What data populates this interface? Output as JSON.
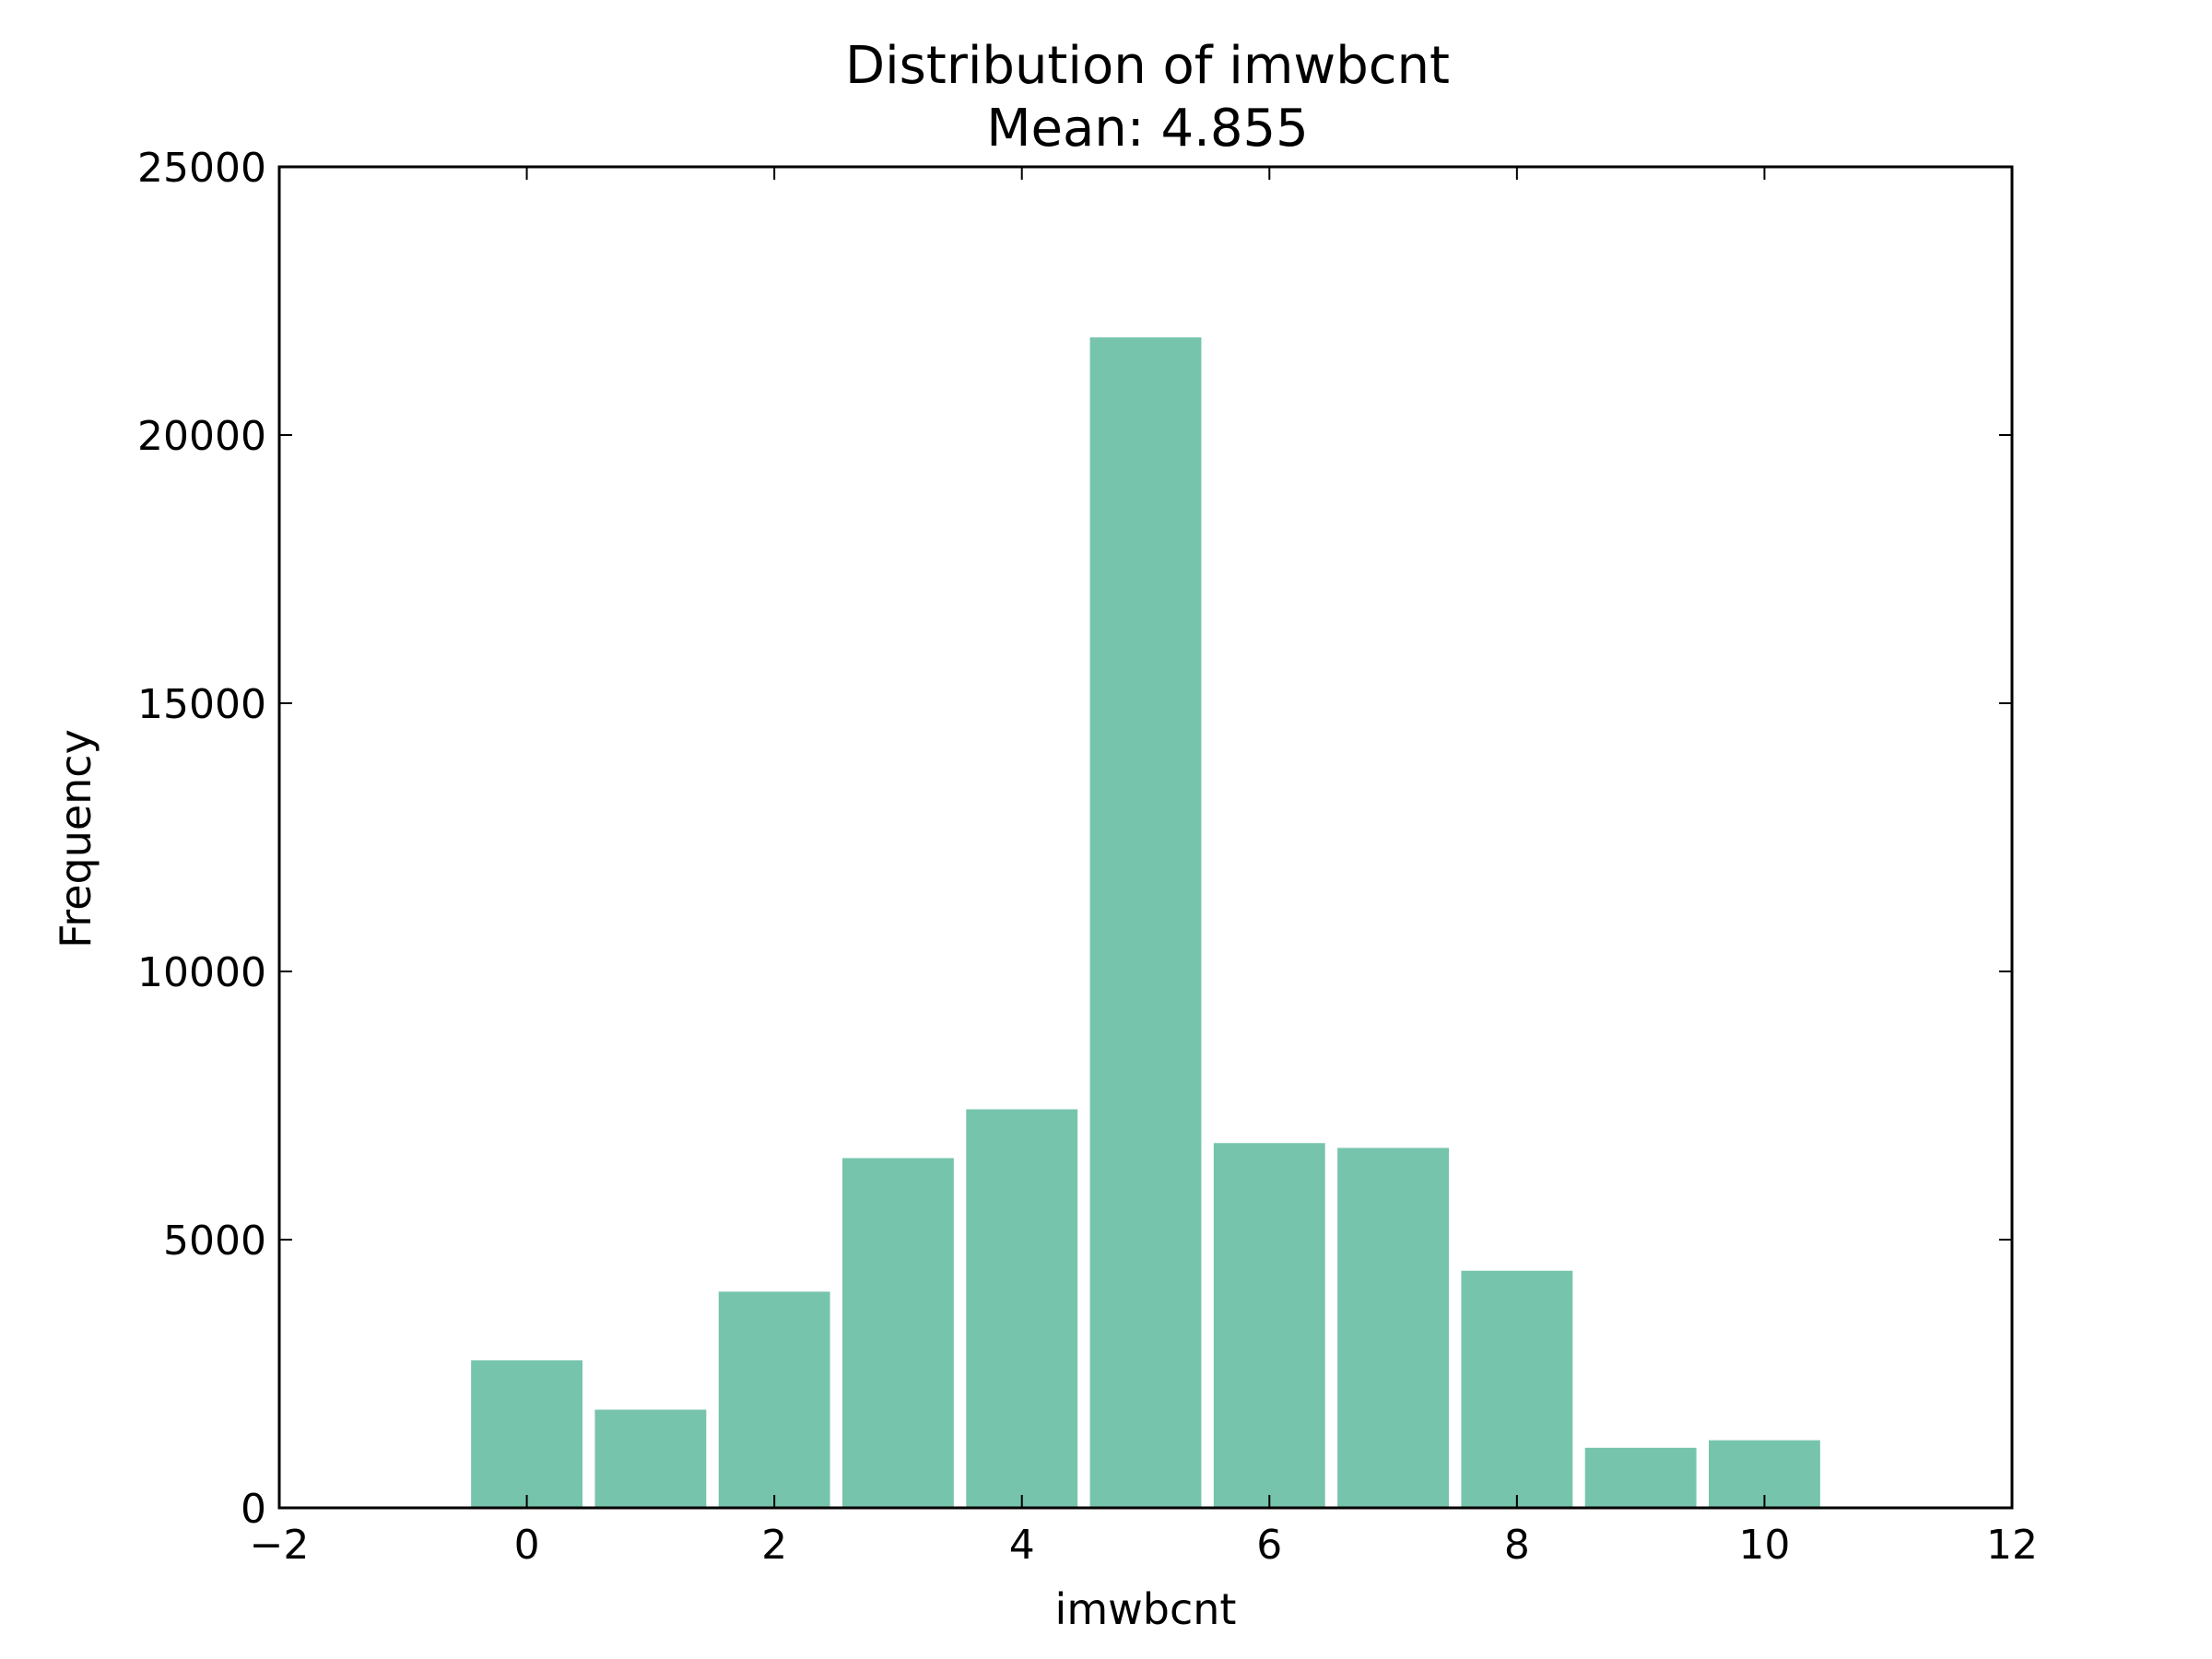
{
  "chart_data": {
    "type": "bar",
    "title": "Distribution of imwbcnt",
    "subtitle": "Mean: 4.855",
    "xlabel": "imwbcnt",
    "ylabel": "Frequency",
    "x": [
      0,
      1,
      2,
      3,
      4,
      5,
      6,
      7,
      8,
      9,
      10
    ],
    "values": [
      2750,
      1830,
      4030,
      6520,
      7430,
      21820,
      6800,
      6710,
      4420,
      1120,
      1260
    ],
    "bar_width": 0.9,
    "xlim": [
      -2,
      12
    ],
    "ylim": [
      0,
      25000
    ],
    "xticks": [
      -2,
      0,
      2,
      4,
      6,
      8,
      10,
      12
    ],
    "xtick_labels": [
      "−2",
      "0",
      "2",
      "4",
      "6",
      "8",
      "10",
      "12"
    ],
    "yticks": [
      0,
      5000,
      10000,
      15000,
      20000,
      25000
    ],
    "ytick_labels": [
      "0",
      "5000",
      "10000",
      "15000",
      "20000",
      "25000"
    ],
    "bar_color": "#77c4ad",
    "grid": false,
    "legend": false
  }
}
